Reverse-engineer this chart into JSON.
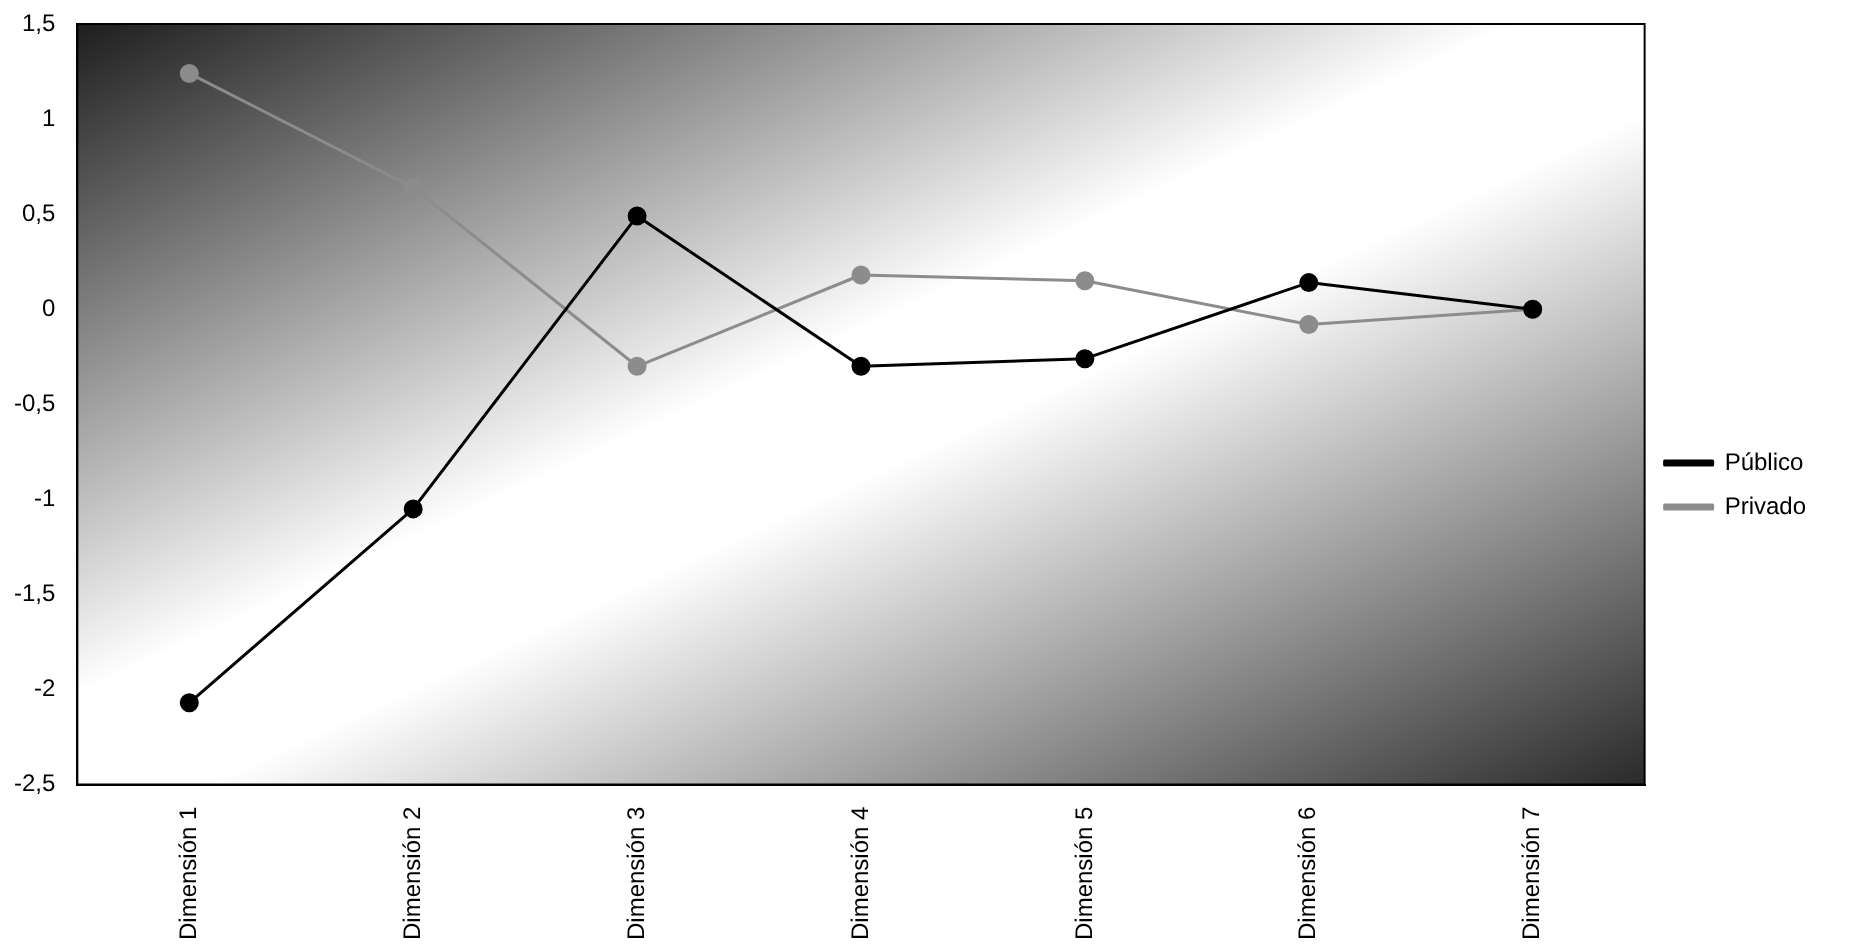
{
  "chart_data": {
    "type": "line",
    "categories": [
      "Dimensión 1",
      "Dimensión 2",
      "Dimensión 3",
      "Dimensión 4",
      "Dimensión 5",
      "Dimensión 6",
      "Dimensión 7"
    ],
    "series": [
      {
        "name": "Público",
        "color": "#000000",
        "values": [
          -2.07,
          -1.05,
          0.49,
          -0.3,
          -0.26,
          0.14,
          0
        ]
      },
      {
        "name": "Privado",
        "color": "#8c8c8c",
        "values": [
          1.24,
          0.64,
          -0.3,
          0.18,
          0.15,
          -0.08,
          0
        ]
      }
    ],
    "ylim": [
      -2.5,
      1.5
    ],
    "yticks": [
      {
        "value": -2.5,
        "label": "-2,5"
      },
      {
        "value": -2,
        "label": "-2"
      },
      {
        "value": -1.5,
        "label": "-1,5"
      },
      {
        "value": -1,
        "label": "-1"
      },
      {
        "value": -0.5,
        "label": "-0,5"
      },
      {
        "value": 0,
        "label": "0"
      },
      {
        "value": 0.5,
        "label": "0,5"
      },
      {
        "value": 1,
        "label": "1"
      },
      {
        "value": 1.5,
        "label": "1,5"
      }
    ],
    "grid": false,
    "legend": "right",
    "marker": "circle",
    "line_style": "solid"
  }
}
